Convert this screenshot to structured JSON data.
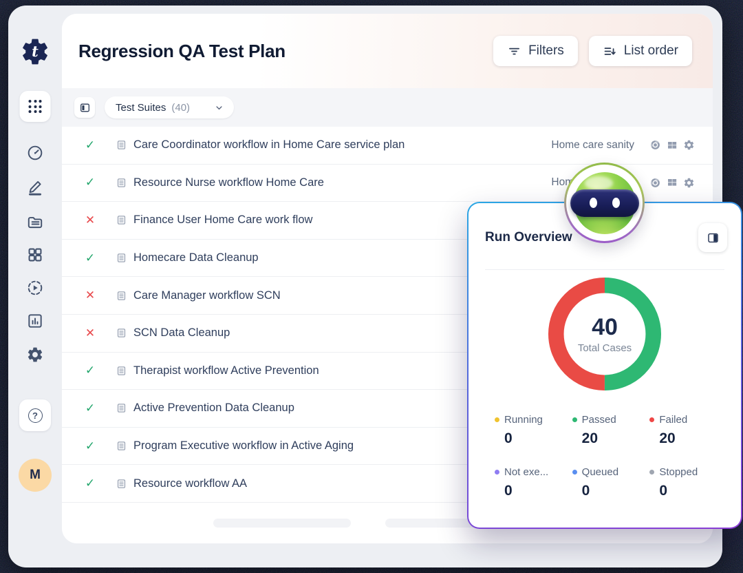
{
  "window": {
    "title": "Regression QA Test Plan"
  },
  "header": {
    "filters": {
      "label": "Filters"
    },
    "list_order": {
      "label": "List order"
    }
  },
  "toolbar": {
    "dropdown_label": "Test Suites",
    "dropdown_count": "(40)"
  },
  "suites": {
    "rows": [
      {
        "status": "passed",
        "name": "Care Coordinator workflow in Home Care service plan",
        "tag": "Home care sanity",
        "env_icons": true
      },
      {
        "status": "passed",
        "name": "Resource Nurse workflow Home Care",
        "tag": "Home care sanity",
        "env_icons": true
      },
      {
        "status": "failed",
        "name": "Finance User Home Care work flow"
      },
      {
        "status": "passed",
        "name": "Homecare Data Cleanup"
      },
      {
        "status": "failed",
        "name": "Care Manager workflow SCN"
      },
      {
        "status": "failed",
        "name": "SCN Data Cleanup"
      },
      {
        "status": "passed",
        "name": "Therapist workflow Active Prevention"
      },
      {
        "status": "passed",
        "name": "Active Prevention Data Cleanup"
      },
      {
        "status": "passed",
        "name": "Program Executive workflow in Active Aging"
      },
      {
        "status": "passed",
        "name": "Resource workflow AA"
      }
    ]
  },
  "run_overview": {
    "title": "Run Overview",
    "total_value": "40",
    "total_label": "Total Cases",
    "legend": [
      {
        "label": "Running",
        "value": "0",
        "color": "#f0c32f"
      },
      {
        "label": "Passed",
        "value": "20",
        "color": "#2eb873"
      },
      {
        "label": "Failed",
        "value": "20",
        "color": "#ef4746"
      },
      {
        "label": "Not exe...",
        "value": "0",
        "color": "#8f7df2"
      },
      {
        "label": "Queued",
        "value": "0",
        "color": "#5a8ff0"
      },
      {
        "label": "Stopped",
        "value": "0",
        "color": "#a0a6b1"
      }
    ]
  },
  "chart_data": {
    "type": "pie",
    "title": "Run Overview",
    "total": 40,
    "center_label": "Total Cases",
    "legend_position": "bottom",
    "segments": [
      {
        "name": "Passed",
        "value": 20,
        "color": "#2eb873"
      },
      {
        "name": "Failed",
        "value": 20,
        "color": "#e94b45"
      }
    ]
  },
  "sidebar": {
    "avatar_initial": "M"
  },
  "colors": {
    "accent_green": "#21a56b",
    "accent_red": "#e8484b",
    "navy_text": "#1d2b4c",
    "panel_border_top": "#2aa7e4",
    "panel_border_bottom": "#8a3bd4",
    "avatar_bg": "#fbd9a5"
  }
}
